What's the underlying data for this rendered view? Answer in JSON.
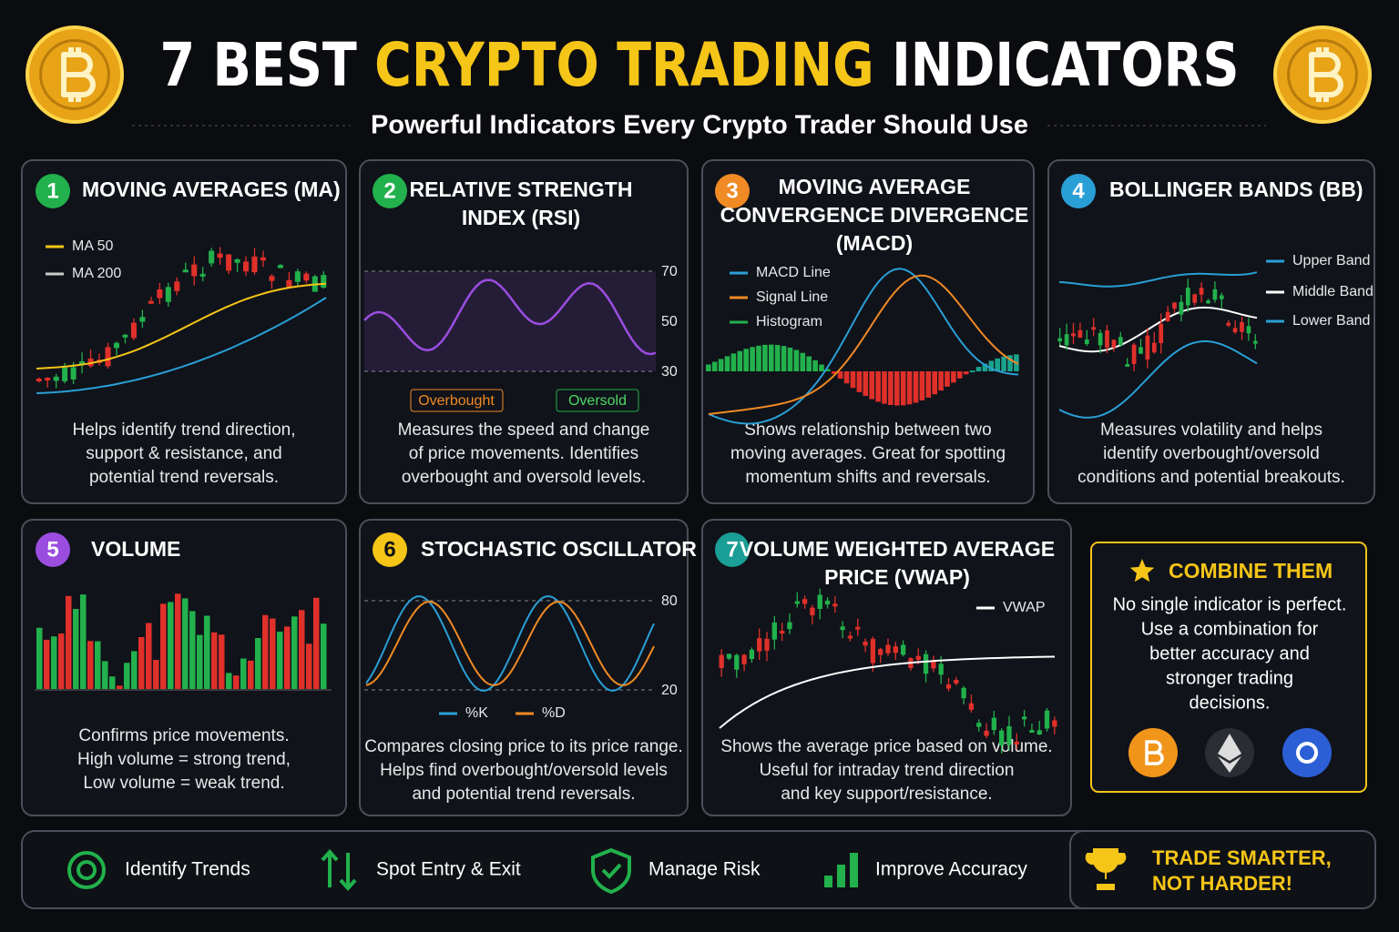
{
  "header": {
    "title_parts": [
      "7 BEST",
      "CRYPTO TRADING",
      "INDICATORS"
    ],
    "subtitle": "Powerful Indicators Every Crypto Trader Should Use"
  },
  "cards": [
    {
      "number": 1,
      "title": [
        "MOVING AVERAGES (MA)"
      ],
      "legend": [
        "MA 50",
        "MA 200"
      ],
      "description": [
        "Helps identify trend direction,",
        "support & resistance, and",
        "potential trend reversals."
      ]
    },
    {
      "number": 2,
      "title": [
        "RELATIVE STRENGTH",
        "INDEX (RSI)"
      ],
      "levels": [
        70,
        50,
        30
      ],
      "tags": [
        "Overbought",
        "Oversold"
      ],
      "description": [
        "Measures the speed and change",
        "of price movements. Identifies",
        "overbought and oversold levels."
      ]
    },
    {
      "number": 3,
      "title": [
        "MOVING AVERAGE",
        "CONVERGENCE DIVERGENCE",
        "(MACD)"
      ],
      "legend": [
        "MACD Line",
        "Signal Line",
        "Histogram"
      ],
      "description": [
        "Shows relationship between two",
        "moving averages. Great for spotting",
        "momentum shifts and reversals."
      ]
    },
    {
      "number": 4,
      "title": [
        "BOLLINGER BANDS (BB)"
      ],
      "legend": [
        "Upper Band",
        "Middle Band",
        "Lower Band"
      ],
      "description": [
        "Measures volatility and helps",
        "identify overbought/oversold",
        "conditions and potential breakouts."
      ]
    },
    {
      "number": 5,
      "title": [
        "VOLUME"
      ],
      "description": [
        "Confirms price movements.",
        "High volume = strong trend,",
        "Low volume = weak trend."
      ]
    },
    {
      "number": 6,
      "title": [
        "STOCHASTIC OSCILLATOR"
      ],
      "levels": [
        80,
        20
      ],
      "legend": [
        "%K",
        "%D"
      ],
      "description": [
        "Compares closing price to its price range.",
        "Helps find overbought/oversold levels",
        "and potential trend reversals."
      ]
    },
    {
      "number": 7,
      "title": [
        "VOLUME WEIGHTED AVERAGE",
        "PRICE (VWAP)"
      ],
      "legend": [
        "VWAP"
      ],
      "description": [
        "Shows the average price based on volume.",
        "Useful for intraday trend direction",
        "and key support/resistance."
      ]
    }
  ],
  "combine": {
    "title": "COMBINE THEM",
    "text": [
      "No single indicator is perfect.",
      "Use a combination for",
      "better accuracy and",
      "stronger trading",
      "decisions."
    ]
  },
  "footer": {
    "items": [
      "Identify Trends",
      "Spot Entry & Exit",
      "Manage Risk",
      "Improve Accuracy"
    ],
    "cta": [
      "TRADE SMARTER,",
      "NOT HARDER!"
    ]
  }
}
